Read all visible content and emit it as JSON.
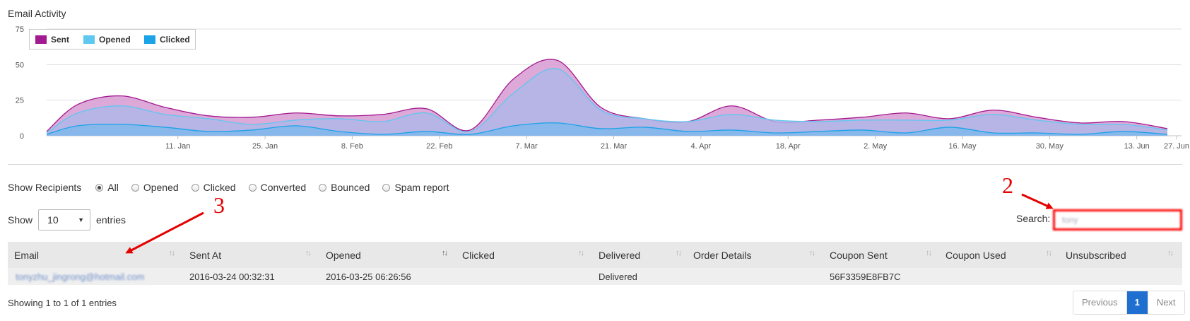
{
  "chart_data": {
    "type": "area",
    "title": "Email Activity",
    "x": [
      "2015-12-30",
      "2016-01-04",
      "2016-01-11",
      "2016-01-18",
      "2016-01-25",
      "2016-02-01",
      "2016-02-08",
      "2016-02-15",
      "2016-02-22",
      "2016-02-29",
      "2016-03-07",
      "2016-03-14",
      "2016-03-21",
      "2016-03-28",
      "2016-04-04",
      "2016-04-11",
      "2016-04-18",
      "2016-04-25",
      "2016-05-02",
      "2016-05-09",
      "2016-05-16",
      "2016-05-23",
      "2016-05-30",
      "2016-06-06",
      "2016-06-13",
      "2016-06-20",
      "2016-06-27"
    ],
    "x_tick_labels": [
      "11. Jan",
      "25. Jan",
      "8. Feb",
      "22. Feb",
      "7. Mar",
      "21. Mar",
      "4. Apr",
      "18. Apr",
      "2. May",
      "16. May",
      "30. May",
      "13. Jun",
      "27. Jun"
    ],
    "x_tick_dates": [
      "2016-01-11",
      "2016-01-25",
      "2016-02-08",
      "2016-02-22",
      "2016-03-07",
      "2016-03-21",
      "2016-04-04",
      "2016-04-18",
      "2016-05-02",
      "2016-05-16",
      "2016-05-30",
      "2016-06-13",
      "2016-06-27"
    ],
    "ylim": [
      0,
      75
    ],
    "y_ticks": [
      0,
      25,
      50,
      75
    ],
    "grid": true,
    "legend_position": "top-left",
    "series": [
      {
        "name": "Sent",
        "color": "#a3198f",
        "fill": "#d79ad2",
        "values": [
          3,
          22,
          28,
          20,
          14,
          13,
          16,
          14,
          15,
          19,
          4,
          40,
          53,
          20,
          12,
          10,
          21,
          10,
          11,
          13,
          16,
          12,
          18,
          13,
          9,
          10,
          5
        ]
      },
      {
        "name": "Opened",
        "color": "#5ec8f0",
        "fill": "#acb8e8",
        "values": [
          2,
          16,
          21,
          15,
          12,
          8,
          11,
          12,
          10,
          16,
          3,
          30,
          47,
          18,
          12,
          10,
          15,
          11,
          10,
          11,
          11,
          11,
          15,
          11,
          8,
          8,
          4
        ]
      },
      {
        "name": "Clicked",
        "color": "#1aa3e6",
        "fill": "#7db8ee",
        "values": [
          1,
          7,
          8,
          6,
          3,
          4,
          7,
          3,
          1,
          3,
          1,
          7,
          9,
          5,
          6,
          3,
          4,
          2,
          3,
          4,
          2,
          6,
          2,
          2,
          1,
          3,
          1
        ]
      }
    ]
  },
  "filters": {
    "label": "Show Recipients",
    "options": [
      "All",
      "Opened",
      "Clicked",
      "Converted",
      "Bounced",
      "Spam report"
    ],
    "selected": "All"
  },
  "length": {
    "show_label": "Show",
    "value": "10",
    "entries_label": "entries"
  },
  "search": {
    "label": "Search:",
    "value": "tony"
  },
  "table": {
    "columns": [
      "Email",
      "Sent At",
      "Opened",
      "Clicked",
      "Delivered",
      "Order Details",
      "Coupon Sent",
      "Coupon Used",
      "Unsubscribed"
    ],
    "rows": [
      {
        "email": "tonyzhu_jingrong@hotmail.com",
        "sent_at": "2016-03-24 00:32:31",
        "opened": "2016-03-25 06:26:56",
        "clicked": "",
        "delivered": "Delivered",
        "order_details": "",
        "coupon_sent": "56F3359E8FB7C",
        "coupon_used": "",
        "unsubscribed": ""
      }
    ]
  },
  "info": "Showing 1 to 1 of 1 entries",
  "pagination": {
    "previous": "Previous",
    "current": "1",
    "next": "Next"
  },
  "annotations": {
    "label_2": "2",
    "label_3": "3",
    "color": "#e40000"
  }
}
